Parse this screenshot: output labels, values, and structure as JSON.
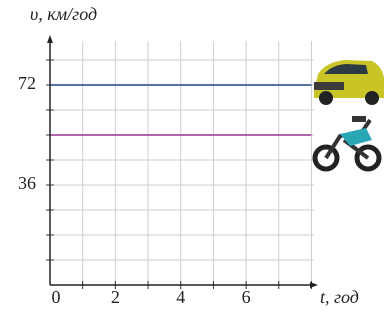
{
  "chart_data": {
    "type": "line",
    "y_label": "υ, км/год",
    "x_label": "t, год",
    "x": [
      0,
      8
    ],
    "series": [
      {
        "color": "#3b5b9c",
        "values": [
          72,
          72
        ]
      },
      {
        "color": "#a64d9f",
        "values": [
          54,
          54
        ]
      }
    ],
    "xlim": [
      0,
      8.2
    ],
    "ylim": [
      0,
      90
    ],
    "xticks": [
      0,
      2,
      4,
      6
    ],
    "yticks": [
      36,
      72
    ],
    "minor_xticks": [
      1,
      2,
      3,
      4,
      5,
      6,
      7,
      8
    ],
    "minor_yticks": [
      9,
      18,
      27,
      36,
      45,
      54,
      63,
      72,
      81
    ],
    "grid": true
  }
}
